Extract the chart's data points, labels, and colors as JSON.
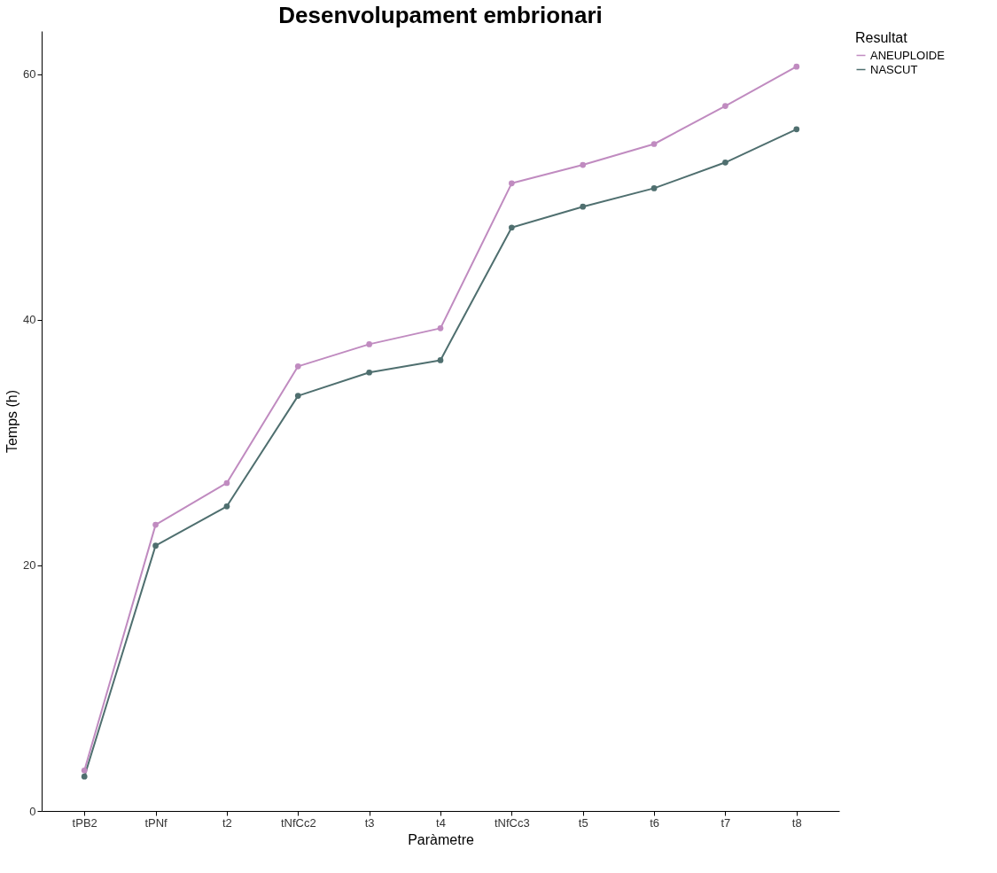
{
  "chart_data": {
    "type": "line",
    "title": "Desenvolupament embrionari",
    "xlabel": "Paràmetre",
    "ylabel": "Temps (h)",
    "legend_title": "Resultat",
    "categories": [
      "tPB2",
      "tPNf",
      "t2",
      "tNfCc2",
      "t3",
      "t4",
      "tNfCc3",
      "t5",
      "t6",
      "t7",
      "t8"
    ],
    "series": [
      {
        "name": "ANEUPLOIDE",
        "color": "#c08bc0",
        "values": [
          3.3,
          23.3,
          26.7,
          36.2,
          38.0,
          39.3,
          51.1,
          52.6,
          54.3,
          57.4,
          60.6
        ]
      },
      {
        "name": "NASCUT",
        "color": "#4f6f6f",
        "values": [
          2.8,
          21.6,
          24.8,
          33.8,
          35.7,
          36.7,
          47.5,
          49.2,
          50.7,
          52.8,
          55.5
        ]
      }
    ],
    "ylim": [
      0,
      63.5
    ],
    "yticks": [
      0,
      20,
      40,
      60
    ],
    "grid": false,
    "legend": "right",
    "marker": "circle",
    "line_style": "solid"
  }
}
